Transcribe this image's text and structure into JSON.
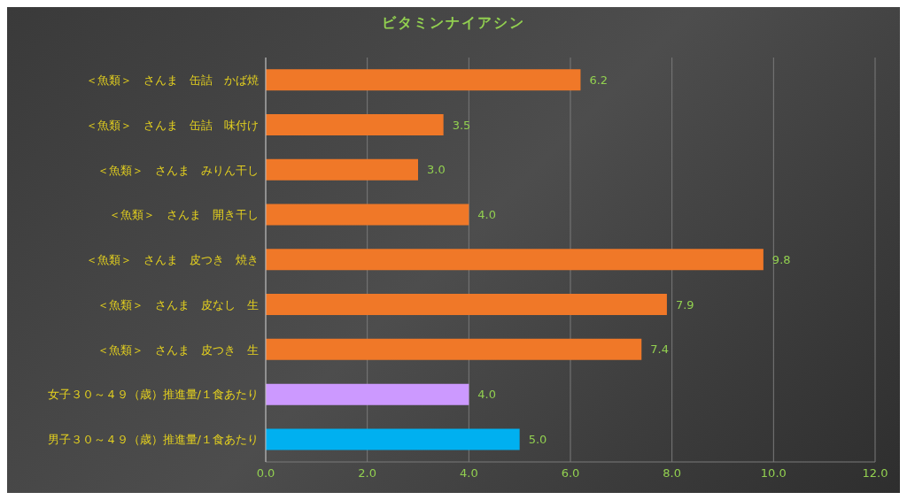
{
  "chart_data": {
    "type": "bar",
    "orientation": "horizontal",
    "title": "ビタミンナイアシン",
    "categories": [
      "＜魚類＞　さんま　缶詰　かば焼",
      "＜魚類＞　さんま　缶詰　味付け",
      "＜魚類＞　さんま　みりん干し",
      "＜魚類＞　さんま　開き干し",
      "＜魚類＞　さんま　皮つき　焼き",
      "＜魚類＞　さんま　皮なし　生",
      "＜魚類＞　さんま　皮つき　生",
      "女子３０～４９（歳）推進量/１食あたり",
      "男子３０～４９（歳）推進量/１食あたり"
    ],
    "values": [
      6.2,
      3.5,
      3.0,
      4.0,
      9.8,
      7.9,
      7.4,
      4.0,
      5.0
    ],
    "colors": [
      "#f07828",
      "#f07828",
      "#f07828",
      "#f07828",
      "#f07828",
      "#f07828",
      "#f07828",
      "#cc99ff",
      "#00b0f0"
    ],
    "value_labels": [
      "6.2",
      "3.5",
      "3.0",
      "4.0",
      "9.8",
      "7.9",
      "7.4",
      "4.0",
      "5.0"
    ],
    "xlim": [
      0,
      12
    ],
    "xticks": [
      {
        "value": 0,
        "label": "0.0"
      },
      {
        "value": 2,
        "label": "2.0"
      },
      {
        "value": 4,
        "label": "4.0"
      },
      {
        "value": 6,
        "label": "6.0"
      },
      {
        "value": 8,
        "label": "8.0"
      },
      {
        "value": 10,
        "label": "10.0"
      },
      {
        "value": 12,
        "label": "12.0"
      }
    ],
    "grid": "x"
  }
}
